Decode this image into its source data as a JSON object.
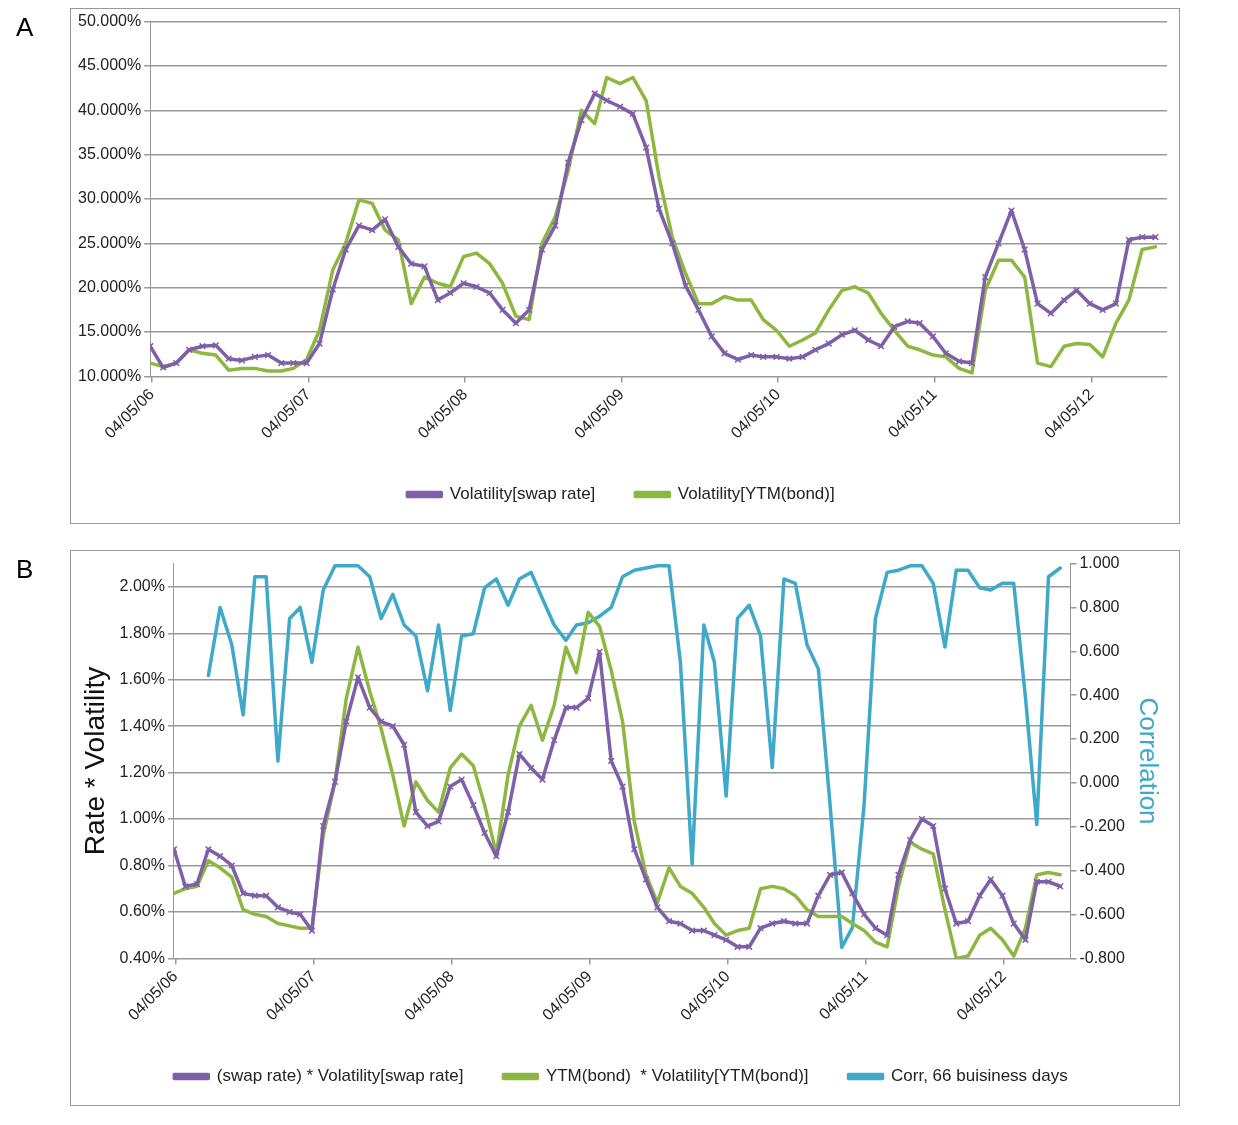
{
  "chart_data": [
    {
      "type": "line",
      "title": "A",
      "x": [
        "2006-04",
        "2006-05",
        "2006-06",
        "2006-07",
        "2006-08",
        "2006-09",
        "2006-10",
        "2006-11",
        "2006-12",
        "2007-01",
        "2007-02",
        "2007-03",
        "2007-04",
        "2007-05",
        "2007-06",
        "2007-07",
        "2007-08",
        "2007-09",
        "2007-10",
        "2007-11",
        "2007-12",
        "2008-01",
        "2008-02",
        "2008-03",
        "2008-04",
        "2008-05",
        "2008-06",
        "2008-07",
        "2008-08",
        "2008-09",
        "2008-10",
        "2008-11",
        "2008-12",
        "2009-01",
        "2009-02",
        "2009-03",
        "2009-04",
        "2009-05",
        "2009-06",
        "2009-07",
        "2009-08",
        "2009-09",
        "2009-10",
        "2009-11",
        "2009-12",
        "2010-01",
        "2010-02",
        "2010-03",
        "2010-04",
        "2010-05",
        "2010-06",
        "2010-07",
        "2010-08",
        "2010-09",
        "2010-10",
        "2010-11",
        "2010-12",
        "2011-01",
        "2011-02",
        "2011-03",
        "2011-04",
        "2011-05",
        "2011-06",
        "2011-07",
        "2011-08",
        "2011-09",
        "2011-10",
        "2011-11",
        "2011-12",
        "2012-01",
        "2012-02",
        "2012-03",
        "2012-04",
        "2012-05",
        "2012-06",
        "2012-07",
        "2012-08",
        "2012-09"
      ],
      "series": [
        {
          "name": "Volatility[swap rate]",
          "color": "#7f5fa8",
          "marker": "cross",
          "values": [
            13.4,
            11,
            11.5,
            13,
            13.4,
            13.5,
            12,
            11.8,
            12.2,
            12.4,
            11.5,
            11.5,
            11.5,
            13.7,
            19.8,
            24.3,
            27,
            26.5,
            27.7,
            24.6,
            22.7,
            22.4,
            18.6,
            19.4,
            20.5,
            20.1,
            19.4,
            17.5,
            16,
            17.5,
            24.3,
            27,
            34.1,
            38.9,
            41.9,
            41.1,
            40.4,
            39.6,
            35.8,
            28.9,
            25,
            20.2,
            17.5,
            14.5,
            12.6,
            11.9,
            12.4,
            12.2,
            12.2,
            12,
            12.2,
            13,
            13.7,
            14.7,
            15.2,
            14.1,
            13.4,
            15.6,
            16.2,
            16,
            14.5,
            12.6,
            11.7,
            11.5,
            21.2,
            25,
            28.7,
            24.3,
            18.2,
            17.1,
            18.6,
            19.7,
            18.2,
            17.5,
            18.2,
            25.4,
            25.7,
            25.7
          ]
        },
        {
          "name": "Volatility[YTM(bond)]",
          "color": "#8cb840",
          "values": [
            11.5,
            11.1,
            11.5,
            13,
            12.6,
            12.4,
            10.7,
            10.9,
            10.9,
            10.6,
            10.6,
            10.9,
            11.9,
            15.2,
            22,
            25,
            29.9,
            29.5,
            26.5,
            25.4,
            18.2,
            21.2,
            20.5,
            20.1,
            23.5,
            23.9,
            22.7,
            20.5,
            16.8,
            16.4,
            25,
            28,
            33.2,
            40,
            38.5,
            43.7,
            43,
            43.7,
            41.1,
            32.5,
            25.7,
            21.6,
            18.2,
            18.2,
            19,
            18.6,
            18.6,
            16.4,
            15.2,
            13.4,
            14.1,
            14.9,
            17.5,
            19.7,
            20.1,
            19.4,
            17.1,
            15.2,
            13.4,
            13,
            12.4,
            12.2,
            10.9,
            10.4,
            19.7,
            23.1,
            23.1,
            21.2,
            11.5,
            11.1,
            13.4,
            13.7,
            13.6,
            12.2,
            16,
            18.6,
            24.3,
            24.6
          ]
        }
      ],
      "xlim": [
        "2006-04-01",
        "2012-09-28"
      ],
      "xticks": [
        {
          "value": "2006-04-05",
          "label": "04/05/06"
        },
        {
          "value": "2007-04-05",
          "label": "04/05/07"
        },
        {
          "value": "2008-04-05",
          "label": "04/05/08"
        },
        {
          "value": "2009-04-05",
          "label": "04/05/09"
        },
        {
          "value": "2010-04-05",
          "label": "04/05/10"
        },
        {
          "value": "2011-04-05",
          "label": "04/05/11"
        },
        {
          "value": "2012-04-05",
          "label": "04/05/12"
        }
      ],
      "ylim": [
        10,
        50
      ],
      "yticks": [
        {
          "value": 10,
          "label": "10.000%"
        },
        {
          "value": 15,
          "label": "15.000%"
        },
        {
          "value": 20,
          "label": "20.000%"
        },
        {
          "value": 25,
          "label": "25.000%"
        },
        {
          "value": 30,
          "label": "30.000%"
        },
        {
          "value": 35,
          "label": "35.000%"
        },
        {
          "value": 40,
          "label": "40.000%"
        },
        {
          "value": 45,
          "label": "45.000%"
        },
        {
          "value": 50,
          "label": "50.000%"
        }
      ],
      "grid": "y",
      "legend": "bottom",
      "line_style": "solid"
    },
    {
      "type": "line",
      "title": "B",
      "ylabel": "Rate * Volatility",
      "y2label": "Correlation",
      "x": [
        "2006-04",
        "2006-05",
        "2006-06",
        "2006-07",
        "2006-08",
        "2006-09",
        "2006-10",
        "2006-11",
        "2006-12",
        "2007-01",
        "2007-02",
        "2007-03",
        "2007-04",
        "2007-05",
        "2007-06",
        "2007-07",
        "2007-08",
        "2007-09",
        "2007-10",
        "2007-11",
        "2007-12",
        "2008-01",
        "2008-02",
        "2008-03",
        "2008-04",
        "2008-05",
        "2008-06",
        "2008-07",
        "2008-08",
        "2008-09",
        "2008-10",
        "2008-11",
        "2008-12",
        "2009-01",
        "2009-02",
        "2009-03",
        "2009-04",
        "2009-05",
        "2009-06",
        "2009-07",
        "2009-08",
        "2009-09",
        "2009-10",
        "2009-11",
        "2009-12",
        "2010-01",
        "2010-02",
        "2010-03",
        "2010-04",
        "2010-05",
        "2010-06",
        "2010-07",
        "2010-08",
        "2010-09",
        "2010-10",
        "2010-11",
        "2010-12",
        "2011-01",
        "2011-02",
        "2011-03",
        "2011-04",
        "2011-05",
        "2011-06",
        "2011-07",
        "2011-08",
        "2011-09",
        "2011-10",
        "2011-11",
        "2011-12",
        "2012-01",
        "2012-02",
        "2012-03",
        "2012-04",
        "2012-05",
        "2012-06",
        "2012-07",
        "2012-08",
        "2012-09"
      ],
      "series": [
        {
          "name": "(swap rate) * Volatility[swap rate]",
          "color": "#7f5fa8",
          "marker": "cross",
          "values": [
            0.87,
            0.71,
            0.72,
            0.87,
            0.84,
            0.8,
            0.68,
            0.67,
            0.67,
            0.62,
            0.6,
            0.59,
            0.52,
            0.97,
            1.16,
            1.42,
            1.61,
            1.48,
            1.42,
            1.4,
            1.32,
            1.03,
            0.97,
            0.99,
            1.14,
            1.17,
            1.06,
            0.94,
            0.84,
            1.03,
            1.28,
            1.22,
            1.17,
            1.34,
            1.48,
            1.48,
            1.52,
            1.72,
            1.25,
            1.14,
            0.87,
            0.74,
            0.62,
            0.56,
            0.55,
            0.52,
            0.52,
            0.5,
            0.48,
            0.45,
            0.45,
            0.53,
            0.55,
            0.56,
            0.55,
            0.55,
            0.67,
            0.76,
            0.77,
            0.68,
            0.59,
            0.53,
            0.5,
            0.76,
            0.91,
            1.0,
            0.97,
            0.7,
            0.55,
            0.56,
            0.67,
            0.74,
            0.67,
            0.55,
            0.48,
            0.73,
            0.73,
            0.71
          ]
        },
        {
          "name": "YTM(bond)  * Volatility[YTM(bond)]",
          "color": "#8cb840",
          "values": [
            0.68,
            0.7,
            0.71,
            0.82,
            0.79,
            0.75,
            0.61,
            0.59,
            0.58,
            0.55,
            0.54,
            0.53,
            0.53,
            0.93,
            1.16,
            1.52,
            1.74,
            1.55,
            1.39,
            1.19,
            0.97,
            1.16,
            1.08,
            1.03,
            1.22,
            1.28,
            1.23,
            1.06,
            0.85,
            1.19,
            1.4,
            1.49,
            1.34,
            1.49,
            1.74,
            1.63,
            1.89,
            1.83,
            1.64,
            1.42,
            0.99,
            0.76,
            0.64,
            0.79,
            0.71,
            0.68,
            0.62,
            0.55,
            0.5,
            0.52,
            0.53,
            0.7,
            0.71,
            0.7,
            0.67,
            0.61,
            0.58,
            0.58,
            0.58,
            0.55,
            0.52,
            0.47,
            0.45,
            0.71,
            0.9,
            0.87,
            0.85,
            0.61,
            0.4,
            0.41,
            0.5,
            0.53,
            0.48,
            0.41,
            0.53,
            0.76,
            0.77,
            0.76
          ]
        },
        {
          "name": "Corr, 66 buisiness days",
          "color": "#3fa9c9",
          "axis": "y2",
          "values": [
            null,
            null,
            null,
            0.49,
            0.8,
            0.63,
            0.31,
            0.94,
            0.94,
            0.1,
            0.75,
            0.8,
            0.55,
            0.88,
            0.99,
            0.99,
            0.99,
            0.94,
            0.75,
            0.86,
            0.72,
            0.67,
            0.42,
            0.72,
            0.33,
            0.67,
            0.68,
            0.89,
            0.93,
            0.81,
            0.93,
            0.96,
            0.84,
            0.72,
            0.65,
            0.72,
            0.73,
            0.76,
            0.8,
            0.94,
            0.97,
            0.98,
            0.99,
            0.99,
            0.55,
            -0.37,
            0.72,
            0.55,
            -0.06,
            0.75,
            0.81,
            0.67,
            0.07,
            0.93,
            0.91,
            0.63,
            0.52,
            -0.1,
            -0.75,
            -0.66,
            -0.1,
            0.75,
            0.96,
            0.97,
            0.99,
            0.99,
            0.91,
            0.62,
            0.97,
            0.97,
            0.89,
            0.88,
            0.91,
            0.91,
            0.39,
            -0.19,
            0.94,
            0.98
          ]
        }
      ],
      "xlim": [
        "2006-04-01",
        "2012-09-28"
      ],
      "xticks": [
        {
          "value": "2006-04-05",
          "label": "04/05/06"
        },
        {
          "value": "2007-04-05",
          "label": "04/05/07"
        },
        {
          "value": "2008-04-05",
          "label": "04/05/08"
        },
        {
          "value": "2009-04-05",
          "label": "04/05/09"
        },
        {
          "value": "2010-04-05",
          "label": "04/05/10"
        },
        {
          "value": "2011-04-05",
          "label": "04/05/11"
        },
        {
          "value": "2012-04-05",
          "label": "04/05/12"
        }
      ],
      "ylim": [
        0.4,
        2.1
      ],
      "yticks": [
        {
          "value": 0.4,
          "label": "0.40%"
        },
        {
          "value": 0.6,
          "label": "0.60%"
        },
        {
          "value": 0.8,
          "label": "0.80%"
        },
        {
          "value": 1,
          "label": "1.00%"
        },
        {
          "value": 1.2,
          "label": "1.20%"
        },
        {
          "value": 1.4,
          "label": "1.40%"
        },
        {
          "value": 1.6,
          "label": "1.60%"
        },
        {
          "value": 1.8,
          "label": "1.80%"
        },
        {
          "value": 2,
          "label": "2.00%"
        }
      ],
      "y2lim": [
        -0.8,
        1.0
      ],
      "y2ticks": [
        {
          "value": -0.8,
          "label": "-0.800"
        },
        {
          "value": -0.6,
          "label": "-0.600"
        },
        {
          "value": -0.4,
          "label": "-0.400"
        },
        {
          "value": -0.2,
          "label": "-0.200"
        },
        {
          "value": 0,
          "label": "0.000"
        },
        {
          "value": 0.2,
          "label": "0.200"
        },
        {
          "value": 0.4,
          "label": "0.400"
        },
        {
          "value": 0.6,
          "label": "0.600"
        },
        {
          "value": 0.8,
          "label": "0.800"
        },
        {
          "value": 1,
          "label": "1.000"
        }
      ],
      "grid": "y",
      "legend": "bottom",
      "line_style": "solid"
    }
  ]
}
